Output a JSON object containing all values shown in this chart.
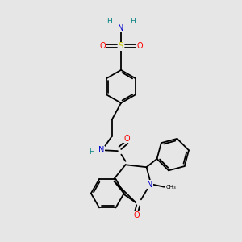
{
  "background_color": "#e6e6e6",
  "atom_colors": {
    "C": "#000000",
    "N": "#0000cc",
    "O": "#ff0000",
    "S": "#cccc00",
    "H": "#008080"
  },
  "figsize": [
    3.0,
    3.0
  ],
  "dpi": 100
}
